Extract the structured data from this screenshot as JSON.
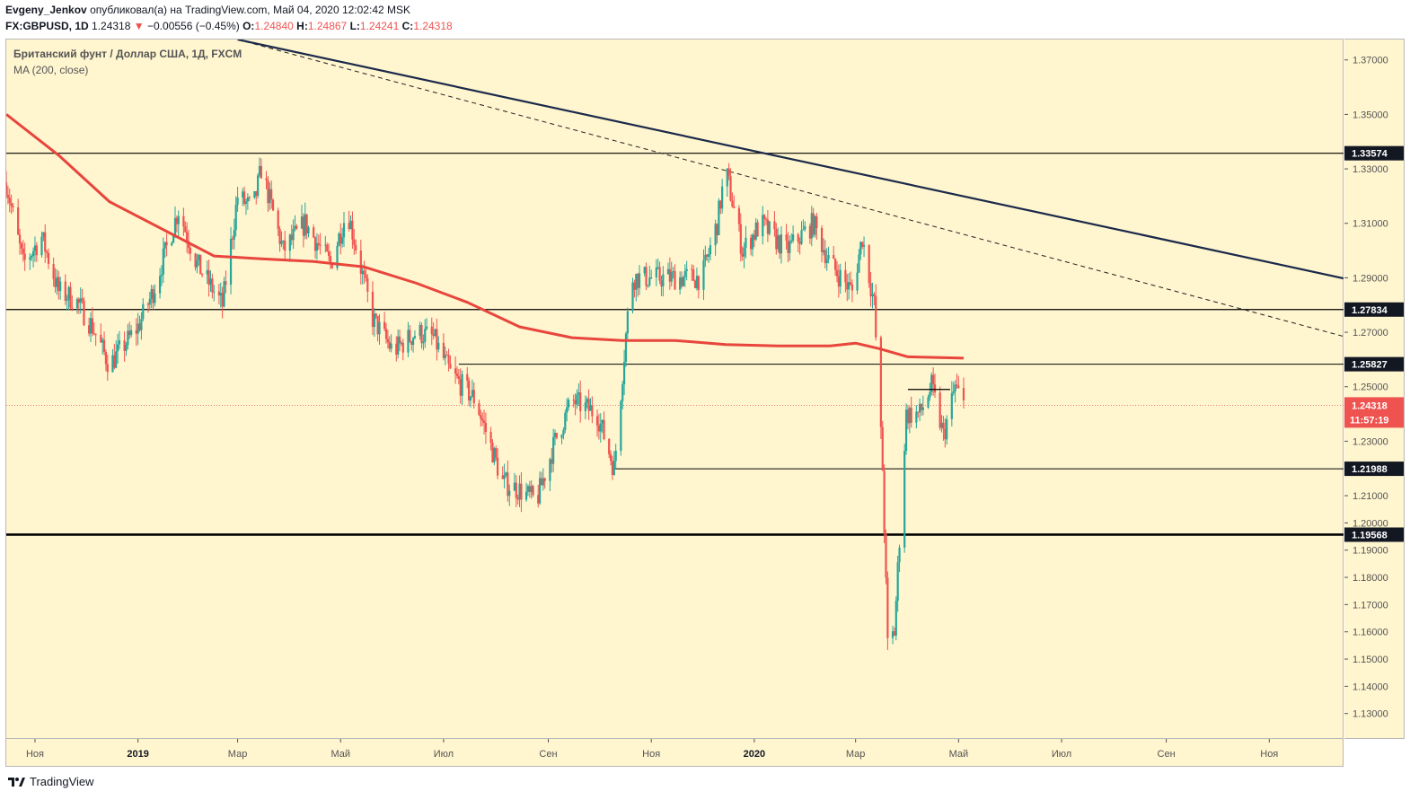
{
  "header": {
    "author": "Evgeny_Jenkov",
    "published_text": "опубликовал(а) на TradingView.com, Май 04, 2020 12:02:42 MSK",
    "symbol": "FX:GBPUSD, 1D",
    "last": "1.24318",
    "change": "−0.00556 (−0.45%)",
    "o_label": "O:",
    "o_value": "1.24840",
    "h_label": "H:",
    "h_value": "1.24867",
    "l_label": "L:",
    "l_value": "1.24241",
    "c_label": "C:",
    "c_value": "1.24318"
  },
  "legend": {
    "title": "Британский фунт / Доллар США, 1Д, FXCM",
    "indicator": "MA (200, close)"
  },
  "footer": {
    "brand": "TradingView"
  },
  "colors": {
    "background": "#fff5cf",
    "up": "#26a69a",
    "down": "#ef5350",
    "ma": "#e8453c",
    "trendline": "#1b2a4a"
  },
  "chart_data": {
    "type": "line",
    "title": "Британский фунт / Доллар США, 1Д, FXCM",
    "ylim": [
      1.121,
      1.3775
    ],
    "yticks": [
      "1.37000",
      "1.35000",
      "1.33000",
      "1.31000",
      "1.29000",
      "1.27000",
      "1.25000",
      "1.23000",
      "1.21000",
      "1.20000",
      "1.19000",
      "1.18000",
      "1.17000",
      "1.16000",
      "1.15000",
      "1.14000",
      "1.13000"
    ],
    "xticks": [
      "Ноя",
      "2019",
      "Мар",
      "Май",
      "Июл",
      "Сен",
      "Ноя",
      "2020",
      "Мар",
      "Май",
      "Июл",
      "Сен",
      "Ноя"
    ],
    "x_range": [
      "2018-10-15",
      "2020-12-15"
    ],
    "xtick_dates": [
      "2018-11-01",
      "2019-01-01",
      "2019-03-01",
      "2019-05-01",
      "2019-07-01",
      "2019-09-01",
      "2019-11-01",
      "2020-01-01",
      "2020-03-01",
      "2020-05-01",
      "2020-07-01",
      "2020-09-01",
      "2020-11-01"
    ],
    "price_keypoints": [
      [
        "2018-10-15",
        1.325
      ],
      [
        "2018-10-25",
        1.295
      ],
      [
        "2018-11-05",
        1.305
      ],
      [
        "2018-11-15",
        1.285
      ],
      [
        "2018-11-25",
        1.282
      ],
      [
        "2018-12-05",
        1.272
      ],
      [
        "2018-12-15",
        1.258
      ],
      [
        "2019-01-01",
        1.272
      ],
      [
        "2019-01-10",
        1.285
      ],
      [
        "2019-01-25",
        1.315
      ],
      [
        "2019-02-05",
        1.295
      ],
      [
        "2019-02-20",
        1.28
      ],
      [
        "2019-03-01",
        1.32
      ],
      [
        "2019-03-10",
        1.315
      ],
      [
        "2019-03-15",
        1.33
      ],
      [
        "2019-03-28",
        1.3
      ],
      [
        "2019-04-10",
        1.31
      ],
      [
        "2019-04-25",
        1.295
      ],
      [
        "2019-05-05",
        1.315
      ],
      [
        "2019-05-20",
        1.275
      ],
      [
        "2019-06-01",
        1.263
      ],
      [
        "2019-06-15",
        1.27
      ],
      [
        "2019-06-25",
        1.268
      ],
      [
        "2019-07-05",
        1.255
      ],
      [
        "2019-07-20",
        1.245
      ],
      [
        "2019-08-05",
        1.215
      ],
      [
        "2019-08-15",
        1.212
      ],
      [
        "2019-08-25",
        1.208
      ],
      [
        "2019-09-05",
        1.23
      ],
      [
        "2019-09-15",
        1.245
      ],
      [
        "2019-09-30",
        1.24
      ],
      [
        "2019-10-10",
        1.22
      ],
      [
        "2019-10-20",
        1.29
      ],
      [
        "2019-10-30",
        1.29
      ],
      [
        "2019-11-15",
        1.29
      ],
      [
        "2019-12-01",
        1.29
      ],
      [
        "2019-12-10",
        1.31
      ],
      [
        "2019-12-15",
        1.33
      ],
      [
        "2019-12-25",
        1.3
      ],
      [
        "2020-01-05",
        1.31
      ],
      [
        "2020-01-20",
        1.3
      ],
      [
        "2020-02-05",
        1.31
      ],
      [
        "2020-02-15",
        1.295
      ],
      [
        "2020-02-28",
        1.285
      ],
      [
        "2020-03-05",
        1.305
      ],
      [
        "2020-03-12",
        1.28
      ],
      [
        "2020-03-17",
        1.22
      ],
      [
        "2020-03-20",
        1.155
      ],
      [
        "2020-03-24",
        1.16
      ],
      [
        "2020-03-31",
        1.24
      ],
      [
        "2020-04-08",
        1.24
      ],
      [
        "2020-04-15",
        1.25
      ],
      [
        "2020-04-22",
        1.232
      ],
      [
        "2020-04-29",
        1.25
      ],
      [
        "2020-05-04",
        1.2432
      ]
    ],
    "ma200_keypoints": [
      [
        "2018-10-15",
        1.35
      ],
      [
        "2018-11-15",
        1.335
      ],
      [
        "2018-12-15",
        1.318
      ],
      [
        "2019-01-15",
        1.308
      ],
      [
        "2019-02-15",
        1.298
      ],
      [
        "2019-03-15",
        1.297
      ],
      [
        "2019-04-15",
        1.296
      ],
      [
        "2019-05-15",
        1.294
      ],
      [
        "2019-06-15",
        1.288
      ],
      [
        "2019-07-15",
        1.281
      ],
      [
        "2019-08-15",
        1.272
      ],
      [
        "2019-09-15",
        1.268
      ],
      [
        "2019-10-15",
        1.267
      ],
      [
        "2019-11-15",
        1.267
      ],
      [
        "2019-12-15",
        1.2655
      ],
      [
        "2020-01-15",
        1.265
      ],
      [
        "2020-02-15",
        1.265
      ],
      [
        "2020-03-01",
        1.266
      ],
      [
        "2020-03-15",
        1.264
      ],
      [
        "2020-04-01",
        1.261
      ],
      [
        "2020-05-04",
        1.2605
      ]
    ],
    "horizontal_levels": [
      {
        "value": 1.33574,
        "label": "1.33574",
        "from": "2018-10-15",
        "to": "2020-12-15",
        "weight": 1.2
      },
      {
        "value": 1.27834,
        "label": "1.27834",
        "from": "2018-10-15",
        "to": "2020-12-15",
        "weight": 1.2
      },
      {
        "value": 1.25827,
        "label": "1.25827",
        "from": "2019-07-10",
        "to": "2020-12-15",
        "weight": 1.0
      },
      {
        "value": 1.21988,
        "label": "1.21988",
        "from": "2019-10-10",
        "to": "2020-12-15",
        "weight": 1.0
      },
      {
        "value": 1.19568,
        "label": "1.19568",
        "from": "2018-10-15",
        "to": "2020-12-15",
        "weight": 2.6
      }
    ],
    "short_level": {
      "value": 1.249,
      "from": "2020-04-01",
      "to": "2020-04-26"
    },
    "trendline_solid": [
      [
        "2019-03-01",
        1.3775
      ],
      [
        "2020-12-15",
        1.2898
      ]
    ],
    "trendline_dashed": [
      [
        "2019-03-01",
        1.3775
      ],
      [
        "2020-12-15",
        1.2685
      ]
    ],
    "current_price": {
      "value": 1.24318,
      "label": "1.24318",
      "countdown": "11:57:19"
    }
  }
}
